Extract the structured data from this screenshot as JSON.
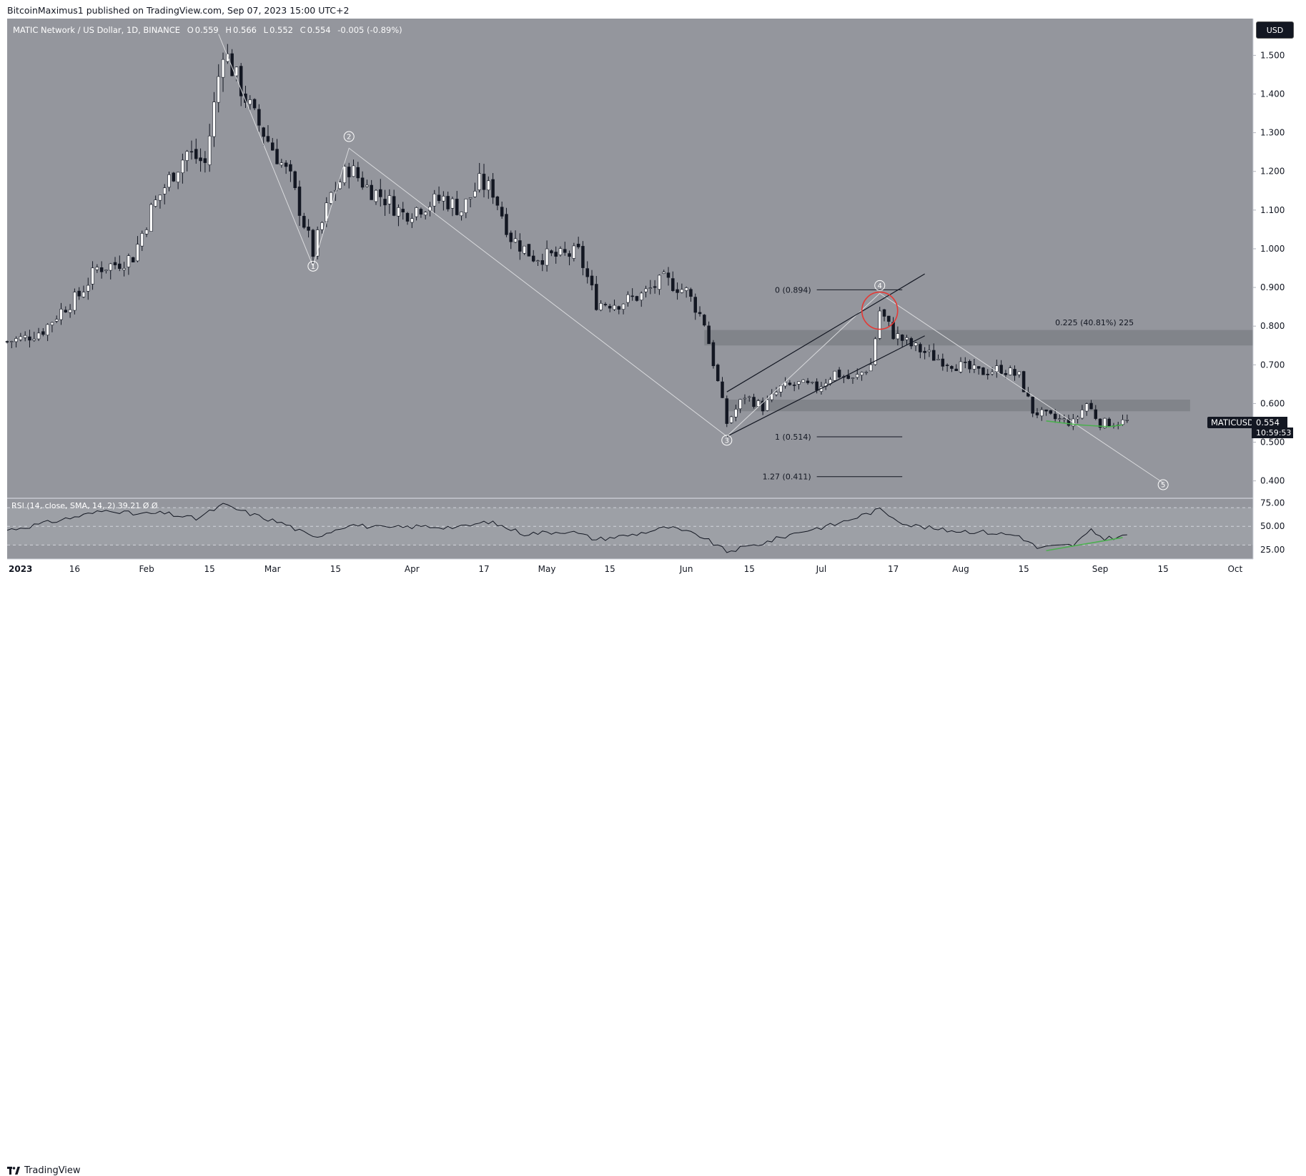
{
  "header": {
    "published_line": "BitcoinMaximus1 published on TradingView.com, Sep 07, 2023 15:00 UTC+2"
  },
  "legend": {
    "symbol_line": "MATIC Network / US Dollar, 1D, BINANCE",
    "open_key": "O",
    "open": "0.559",
    "high_key": "H",
    "high": "0.566",
    "low_key": "L",
    "low": "0.552",
    "close_key": "C",
    "close": "0.554",
    "change": "-0.005 (-0.89%)"
  },
  "currency_button": "USD",
  "ticker_tag": "MATICUSD",
  "last_price_tag": "0.554",
  "countdown": "10:59:53",
  "rsi_legend": "RSI (14, close, SMA, 14, 2)  39.21  Ø  Ø",
  "footer": {
    "brand": "TradingView"
  },
  "colors": {
    "background": "#94969d",
    "candle_up": "#ffffff",
    "candle_down": "#131722",
    "channel": "#131722",
    "wave_line": "#d9dadd",
    "red_circle": "#e53935",
    "green_line": "#4caf50",
    "zone": "#7b7d84"
  },
  "chart_data": [
    {
      "type": "candlestick",
      "title": "MATIC Network / US Dollar, 1D, BINANCE",
      "y_axis_ticks": [
        "1.500",
        "1.400",
        "1.300",
        "1.200",
        "1.100",
        "1.000",
        "0.900",
        "0.800",
        "0.700",
        "0.600",
        "0.500",
        "0.400"
      ],
      "x_axis_ticks": [
        "2023",
        "16",
        "Feb",
        "15",
        "Mar",
        "15",
        "Apr",
        "17",
        "May",
        "15",
        "Jun",
        "15",
        "Jul",
        "17",
        "Aug",
        "15",
        "Sep",
        "15",
        "Oct"
      ],
      "ylim": [
        0.355,
        1.595
      ],
      "x_range": [
        "2023-01-01",
        "2023-10-05"
      ],
      "close_path": [
        {
          "d": "2023-01-01",
          "v": 0.76
        },
        {
          "d": "2023-01-05",
          "v": 0.77
        },
        {
          "d": "2023-01-09",
          "v": 0.79
        },
        {
          "d": "2023-01-13",
          "v": 0.84
        },
        {
          "d": "2023-01-17",
          "v": 0.88
        },
        {
          "d": "2023-01-21",
          "v": 0.95
        },
        {
          "d": "2023-01-25",
          "v": 0.96
        },
        {
          "d": "2023-01-29",
          "v": 0.98
        },
        {
          "d": "2023-02-02",
          "v": 1.1
        },
        {
          "d": "2023-02-06",
          "v": 1.18
        },
        {
          "d": "2023-02-10",
          "v": 1.25
        },
        {
          "d": "2023-02-14",
          "v": 1.22
        },
        {
          "d": "2023-02-18",
          "v": 1.52
        },
        {
          "d": "2023-02-21",
          "v": 1.44
        },
        {
          "d": "2023-02-25",
          "v": 1.34
        },
        {
          "d": "2023-03-01",
          "v": 1.26
        },
        {
          "d": "2023-03-05",
          "v": 1.18
        },
        {
          "d": "2023-03-10",
          "v": 0.99
        },
        {
          "d": "2023-03-14",
          "v": 1.14
        },
        {
          "d": "2023-03-18",
          "v": 1.21
        },
        {
          "d": "2023-03-22",
          "v": 1.16
        },
        {
          "d": "2023-03-26",
          "v": 1.13
        },
        {
          "d": "2023-03-30",
          "v": 1.09
        },
        {
          "d": "2023-04-03",
          "v": 1.11
        },
        {
          "d": "2023-04-08",
          "v": 1.13
        },
        {
          "d": "2023-04-12",
          "v": 1.1
        },
        {
          "d": "2023-04-16",
          "v": 1.17
        },
        {
          "d": "2023-04-19",
          "v": 1.15
        },
        {
          "d": "2023-04-23",
          "v": 1.03
        },
        {
          "d": "2023-04-28",
          "v": 0.98
        },
        {
          "d": "2023-05-04",
          "v": 0.98
        },
        {
          "d": "2023-05-08",
          "v": 0.99
        },
        {
          "d": "2023-05-12",
          "v": 0.86
        },
        {
          "d": "2023-05-17",
          "v": 0.86
        },
        {
          "d": "2023-05-22",
          "v": 0.88
        },
        {
          "d": "2023-05-27",
          "v": 0.92
        },
        {
          "d": "2023-06-01",
          "v": 0.89
        },
        {
          "d": "2023-06-05",
          "v": 0.81
        },
        {
          "d": "2023-06-10",
          "v": 0.55
        },
        {
          "d": "2023-06-14",
          "v": 0.62
        },
        {
          "d": "2023-06-18",
          "v": 0.59
        },
        {
          "d": "2023-06-22",
          "v": 0.64
        },
        {
          "d": "2023-06-26",
          "v": 0.65
        },
        {
          "d": "2023-06-30",
          "v": 0.64
        },
        {
          "d": "2023-07-04",
          "v": 0.68
        },
        {
          "d": "2023-07-08",
          "v": 0.66
        },
        {
          "d": "2023-07-12",
          "v": 0.7
        },
        {
          "d": "2023-07-14",
          "v": 0.84
        },
        {
          "d": "2023-07-17",
          "v": 0.78
        },
        {
          "d": "2023-07-21",
          "v": 0.75
        },
        {
          "d": "2023-07-26",
          "v": 0.72
        },
        {
          "d": "2023-07-31",
          "v": 0.7
        },
        {
          "d": "2023-08-05",
          "v": 0.68
        },
        {
          "d": "2023-08-10",
          "v": 0.69
        },
        {
          "d": "2023-08-14",
          "v": 0.67
        },
        {
          "d": "2023-08-17",
          "v": 0.58
        },
        {
          "d": "2023-08-22",
          "v": 0.56
        },
        {
          "d": "2023-08-26",
          "v": 0.55
        },
        {
          "d": "2023-08-29",
          "v": 0.6
        },
        {
          "d": "2023-09-01",
          "v": 0.55
        },
        {
          "d": "2023-09-04",
          "v": 0.55
        },
        {
          "d": "2023-09-07",
          "v": 0.554
        }
      ],
      "annotations": {
        "wave_labels": [
          {
            "label": "1",
            "d": "2023-03-10",
            "v": 0.955
          },
          {
            "label": "2",
            "d": "2023-03-18",
            "v": 1.29
          },
          {
            "label": "3",
            "d": "2023-06-10",
            "v": 0.505
          },
          {
            "label": "4",
            "d": "2023-07-14",
            "v": 0.905
          },
          {
            "label": "5",
            "d": "2023-09-15",
            "v": 0.39
          }
        ],
        "wave_path": [
          {
            "d": "2023-02-17",
            "v": 1.555
          },
          {
            "d": "2023-03-10",
            "v": 0.955
          },
          {
            "d": "2023-03-18",
            "v": 1.26
          },
          {
            "d": "2023-06-10",
            "v": 0.515
          },
          {
            "d": "2023-07-14",
            "v": 0.885
          },
          {
            "d": "2023-09-15",
            "v": 0.395
          }
        ],
        "fib_levels": [
          {
            "label": "0 (0.894)",
            "v": 0.894
          },
          {
            "label": "1 (0.514)",
            "v": 0.514
          },
          {
            "label": "1.27 (0.411)",
            "v": 0.411
          }
        ],
        "fib_x_range": [
          "2023-06-30",
          "2023-07-19"
        ],
        "target_label": "0.225 (40.81%) 225",
        "target_level": 0.81,
        "zones": [
          {
            "top": 0.79,
            "bottom": 0.75,
            "from": "2023-06-05",
            "to": "2023-10-05"
          },
          {
            "top": 0.61,
            "bottom": 0.58,
            "from": "2023-06-10",
            "to": "2023-09-21"
          }
        ],
        "channel": {
          "upper": [
            {
              "d": "2023-06-10",
              "v": 0.63
            },
            {
              "d": "2023-07-24",
              "v": 0.935
            }
          ],
          "lower": [
            {
              "d": "2023-06-10",
              "v": 0.515
            },
            {
              "d": "2023-07-24",
              "v": 0.775
            }
          ]
        },
        "red_circle": {
          "d": "2023-07-14",
          "v": 0.84
        },
        "support_curve": [
          {
            "d": "2023-08-20",
            "v": 0.555
          },
          {
            "d": "2023-08-27",
            "v": 0.545
          },
          {
            "d": "2023-09-03",
            "v": 0.54
          },
          {
            "d": "2023-09-06",
            "v": 0.545
          }
        ]
      }
    },
    {
      "type": "line",
      "title": "RSI (14, close, SMA, 14, 2)",
      "value": 39.21,
      "y_axis_ticks": [
        "75.00",
        "50.00",
        "25.00"
      ],
      "ylim": [
        15,
        80
      ],
      "band": [
        30,
        70
      ],
      "rsi_path": [
        {
          "d": "2023-01-01",
          "v": 46
        },
        {
          "d": "2023-01-08",
          "v": 52
        },
        {
          "d": "2023-01-16",
          "v": 60
        },
        {
          "d": "2023-01-24",
          "v": 68
        },
        {
          "d": "2023-01-29",
          "v": 63
        },
        {
          "d": "2023-02-05",
          "v": 64
        },
        {
          "d": "2023-02-12",
          "v": 58
        },
        {
          "d": "2023-02-18",
          "v": 73
        },
        {
          "d": "2023-02-25",
          "v": 62
        },
        {
          "d": "2023-03-04",
          "v": 52
        },
        {
          "d": "2023-03-10",
          "v": 38
        },
        {
          "d": "2023-03-18",
          "v": 52
        },
        {
          "d": "2023-03-26",
          "v": 48
        },
        {
          "d": "2023-04-03",
          "v": 50
        },
        {
          "d": "2023-04-12",
          "v": 49
        },
        {
          "d": "2023-04-18",
          "v": 55
        },
        {
          "d": "2023-04-26",
          "v": 42
        },
        {
          "d": "2023-05-06",
          "v": 45
        },
        {
          "d": "2023-05-12",
          "v": 36
        },
        {
          "d": "2023-05-20",
          "v": 41
        },
        {
          "d": "2023-05-28",
          "v": 49
        },
        {
          "d": "2023-06-04",
          "v": 40
        },
        {
          "d": "2023-06-10",
          "v": 23
        },
        {
          "d": "2023-06-18",
          "v": 32
        },
        {
          "d": "2023-06-26",
          "v": 44
        },
        {
          "d": "2023-07-04",
          "v": 52
        },
        {
          "d": "2023-07-14",
          "v": 68
        },
        {
          "d": "2023-07-20",
          "v": 52
        },
        {
          "d": "2023-07-28",
          "v": 46
        },
        {
          "d": "2023-08-06",
          "v": 44
        },
        {
          "d": "2023-08-14",
          "v": 40
        },
        {
          "d": "2023-08-18",
          "v": 27
        },
        {
          "d": "2023-08-26",
          "v": 30
        },
        {
          "d": "2023-08-30",
          "v": 45
        },
        {
          "d": "2023-09-02",
          "v": 37
        },
        {
          "d": "2023-09-07",
          "v": 40
        }
      ],
      "support_line": [
        {
          "d": "2023-08-20",
          "v": 24
        },
        {
          "d": "2023-09-06",
          "v": 38
        }
      ]
    }
  ]
}
